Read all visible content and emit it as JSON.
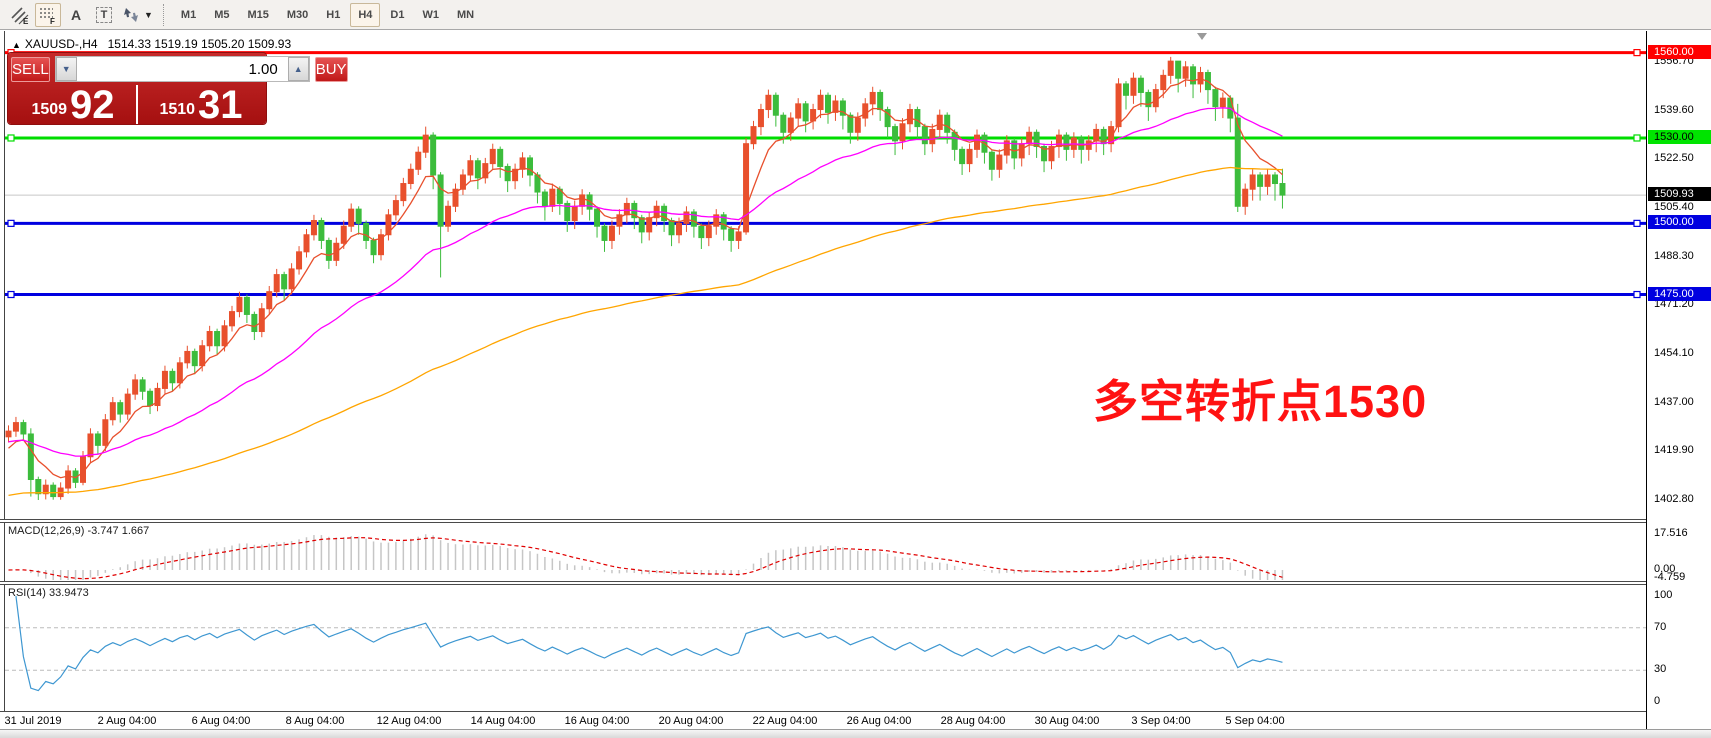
{
  "toolbar": {
    "tools": [
      {
        "name": "equidistant-channel-icon",
        "sub": "E"
      },
      {
        "name": "fibonacci-retracement-icon",
        "sub": "F",
        "active": true
      },
      {
        "name": "text-icon",
        "glyph": "A"
      },
      {
        "name": "text-label-icon",
        "glyph": "T"
      },
      {
        "name": "arrow-objects-icon",
        "caret": "▾"
      }
    ],
    "timeframes": [
      "M1",
      "M5",
      "M15",
      "M30",
      "H1",
      "H4",
      "D1",
      "W1",
      "MN"
    ],
    "active_timeframe": "H4"
  },
  "header": {
    "marker": "▲",
    "symbol_period": "XAUUSD-,H4",
    "ohlc": "1514.33 1519.19 1505.20 1509.93"
  },
  "trade_panel": {
    "sell_label": "SELL",
    "buy_label": "BUY",
    "volume": "1.00",
    "spin_down": "▼",
    "spin_up": "▲",
    "bid_small": "1509",
    "bid_big": "92",
    "ask_small": "1510",
    "ask_big": "31"
  },
  "annotation": {
    "text": "多空转折点1530",
    "color": "#FF1212"
  },
  "indicator_labels": {
    "macd": "MACD(12,26,9) -3.747 1.667",
    "rsi": "RSI(14) 33.9473"
  },
  "chart_data": {
    "type": "candlestick",
    "symbol": "XAUUSD",
    "period": "H4",
    "colors": {
      "up": "#E8502D",
      "down": "#3CBC3C",
      "ma_fast": "#E8502D",
      "ma_mid": "#FF00FF",
      "ma_slow": "#FFA500",
      "rsi": "#3E97D1",
      "macd_hist": "#C6C6C6",
      "macd_signal": "#E00000",
      "current_price_line": "#C8C8C8"
    },
    "first_open": 1425,
    "candles": [
      [
        1429,
        1423,
        1427
      ],
      [
        1432,
        1425,
        1430
      ],
      [
        1431,
        1424,
        1426
      ],
      [
        1428,
        1404,
        1410
      ],
      [
        1411,
        1402.8,
        1405
      ],
      [
        1410,
        1403,
        1408
      ],
      [
        1409,
        1402.9,
        1404
      ],
      [
        1409,
        1402.9,
        1407
      ],
      [
        1415,
        1405,
        1413
      ],
      [
        1414,
        1407,
        1409
      ],
      [
        1420,
        1408,
        1418
      ],
      [
        1428,
        1416,
        1426
      ],
      [
        1427,
        1419,
        1422
      ],
      [
        1433,
        1420,
        1431
      ],
      [
        1439,
        1429,
        1437
      ],
      [
        1438,
        1430,
        1433
      ],
      [
        1442,
        1431,
        1440
      ],
      [
        1447,
        1438,
        1445
      ],
      [
        1446,
        1438,
        1441
      ],
      [
        1442,
        1433,
        1436
      ],
      [
        1444,
        1434,
        1442
      ],
      [
        1450,
        1440,
        1448
      ],
      [
        1449,
        1441,
        1444
      ],
      [
        1453,
        1442,
        1451
      ],
      [
        1457,
        1449,
        1455
      ],
      [
        1456,
        1447,
        1450
      ],
      [
        1459,
        1448,
        1457
      ],
      [
        1464,
        1455,
        1462
      ],
      [
        1463,
        1454,
        1457
      ],
      [
        1466,
        1455,
        1464
      ],
      [
        1471,
        1462,
        1469
      ],
      [
        1476,
        1467,
        1474
      ],
      [
        1475,
        1465,
        1468
      ],
      [
        1469,
        1459,
        1462
      ],
      [
        1472,
        1460,
        1470
      ],
      [
        1478,
        1468,
        1476
      ],
      [
        1484,
        1474,
        1482
      ],
      [
        1483,
        1473,
        1477
      ],
      [
        1486,
        1475,
        1484
      ],
      [
        1492,
        1482,
        1490
      ],
      [
        1498,
        1488,
        1496
      ],
      [
        1503,
        1494,
        1501
      ],
      [
        1502,
        1491,
        1494
      ],
      [
        1495,
        1484,
        1487
      ],
      [
        1495,
        1485,
        1493
      ],
      [
        1501,
        1491,
        1499
      ],
      [
        1507,
        1497,
        1505
      ],
      [
        1506,
        1496,
        1500
      ],
      [
        1501,
        1491,
        1494
      ],
      [
        1495,
        1486,
        1489
      ],
      [
        1498,
        1487,
        1496
      ],
      [
        1505,
        1494,
        1503
      ],
      [
        1510,
        1501,
        1508
      ],
      [
        1516,
        1506,
        1514
      ],
      [
        1521,
        1512,
        1519
      ],
      [
        1527,
        1517,
        1525
      ],
      [
        1534,
        1523,
        1531
      ],
      [
        1532,
        1512,
        1517
      ],
      [
        1518,
        1481,
        1499
      ],
      [
        1508,
        1497,
        1506
      ],
      [
        1514,
        1504,
        1512
      ],
      [
        1519,
        1510,
        1517
      ],
      [
        1524,
        1515,
        1522
      ],
      [
        1523,
        1512,
        1516
      ],
      [
        1523,
        1514,
        1521
      ],
      [
        1528,
        1519,
        1526
      ],
      [
        1527,
        1516,
        1520
      ],
      [
        1521,
        1511,
        1515
      ],
      [
        1521,
        1512,
        1519
      ],
      [
        1525,
        1516,
        1523
      ],
      [
        1524,
        1513,
        1517
      ],
      [
        1518,
        1507,
        1511
      ],
      [
        1512,
        1501,
        1506
      ],
      [
        1514,
        1504,
        1512
      ],
      [
        1513,
        1503,
        1507
      ],
      [
        1508,
        1497,
        1501
      ],
      [
        1508,
        1498,
        1506
      ],
      [
        1512,
        1503,
        1510
      ],
      [
        1511,
        1501,
        1505
      ],
      [
        1506,
        1495,
        1499
      ],
      [
        1500,
        1490,
        1494
      ],
      [
        1501,
        1491,
        1499
      ],
      [
        1505,
        1496,
        1503
      ],
      [
        1509,
        1500,
        1507
      ],
      [
        1508,
        1498,
        1502
      ],
      [
        1503,
        1493,
        1497
      ],
      [
        1504,
        1494,
        1502
      ],
      [
        1508,
        1499,
        1506
      ],
      [
        1507,
        1497,
        1501
      ],
      [
        1502,
        1492,
        1496
      ],
      [
        1502,
        1493,
        1500
      ],
      [
        1506,
        1497,
        1504
      ],
      [
        1505,
        1495,
        1499
      ],
      [
        1500,
        1491,
        1495
      ],
      [
        1501,
        1492,
        1499
      ],
      [
        1505,
        1496,
        1503
      ],
      [
        1504,
        1494,
        1498
      ],
      [
        1499,
        1490,
        1494
      ],
      [
        1499,
        1491,
        1497
      ],
      [
        1530,
        1496,
        1528
      ],
      [
        1536,
        1526,
        1534
      ],
      [
        1542,
        1531,
        1540
      ],
      [
        1547,
        1537,
        1545
      ],
      [
        1546,
        1534,
        1538
      ],
      [
        1539,
        1528,
        1532
      ],
      [
        1539,
        1529,
        1537
      ],
      [
        1544,
        1534,
        1542
      ],
      [
        1543,
        1532,
        1536
      ],
      [
        1542,
        1533,
        1540
      ],
      [
        1547,
        1537,
        1545
      ],
      [
        1546,
        1535,
        1539
      ],
      [
        1545,
        1536,
        1543
      ],
      [
        1544,
        1533,
        1538
      ],
      [
        1539,
        1528,
        1532
      ],
      [
        1539,
        1529,
        1537
      ],
      [
        1544,
        1534,
        1542
      ],
      [
        1548,
        1538,
        1546
      ],
      [
        1547,
        1536,
        1540
      ],
      [
        1541,
        1530,
        1534
      ],
      [
        1535,
        1524,
        1529
      ],
      [
        1537,
        1526,
        1535
      ],
      [
        1542,
        1532,
        1540
      ],
      [
        1541,
        1530,
        1534
      ],
      [
        1535,
        1524,
        1528
      ],
      [
        1535,
        1525,
        1533
      ],
      [
        1540,
        1530,
        1538
      ],
      [
        1539,
        1528,
        1532
      ],
      [
        1533,
        1522,
        1526
      ],
      [
        1527,
        1517,
        1521
      ],
      [
        1528,
        1518,
        1526
      ],
      [
        1533,
        1523,
        1531
      ],
      [
        1532,
        1521,
        1525
      ],
      [
        1526,
        1515,
        1519
      ],
      [
        1526,
        1516,
        1524
      ],
      [
        1531,
        1521,
        1529
      ],
      [
        1530,
        1519,
        1523
      ],
      [
        1530,
        1520,
        1528
      ],
      [
        1534,
        1524,
        1532
      ],
      [
        1533,
        1523,
        1527
      ],
      [
        1528,
        1518,
        1522
      ],
      [
        1529,
        1519,
        1527
      ],
      [
        1533,
        1523,
        1531
      ],
      [
        1532,
        1522,
        1526
      ],
      [
        1532,
        1523,
        1530
      ],
      [
        1531,
        1521,
        1526
      ],
      [
        1531,
        1522,
        1529
      ],
      [
        1535,
        1525,
        1533
      ],
      [
        1534,
        1524,
        1528
      ],
      [
        1536,
        1525,
        1534
      ],
      [
        1551,
        1532,
        1549
      ],
      [
        1550,
        1540,
        1545
      ],
      [
        1553,
        1542,
        1551
      ],
      [
        1552,
        1541,
        1546
      ],
      [
        1547,
        1536,
        1541
      ],
      [
        1549,
        1539,
        1547
      ],
      [
        1554,
        1544,
        1552
      ],
      [
        1558.5,
        1549,
        1557
      ],
      [
        1556,
        1546,
        1551
      ],
      [
        1557,
        1548,
        1555
      ],
      [
        1556,
        1544,
        1549
      ],
      [
        1555,
        1546,
        1553
      ],
      [
        1554,
        1542,
        1547
      ],
      [
        1548,
        1536,
        1541
      ],
      [
        1546,
        1537,
        1544
      ],
      [
        1545,
        1532,
        1537
      ],
      [
        1542,
        1504,
        1506
      ],
      [
        1514,
        1503,
        1512
      ],
      [
        1519,
        1508,
        1517
      ],
      [
        1518,
        1508,
        1513
      ],
      [
        1519,
        1510,
        1517
      ],
      [
        1518,
        1508,
        1514
      ],
      [
        1519.19,
        1505.2,
        1509.93
      ]
    ],
    "moving_averages": [
      {
        "name": "ma-fast",
        "period": 7,
        "color": "#E8502D",
        "seed": 1419
      },
      {
        "name": "ma-mid",
        "period": 32,
        "color": "#FF00FF",
        "seed": 1423
      },
      {
        "name": "ma-slow",
        "period": 110,
        "color": "#FFA500",
        "seed": 1404
      }
    ],
    "hlines": [
      {
        "price": 1560.0,
        "color": "#FF0000",
        "width": 3,
        "handles": true,
        "label": "1560.00",
        "bg": "#FF0000",
        "fg": "#FFFFFF"
      },
      {
        "price": 1530.0,
        "color": "#00DD00",
        "width": 3,
        "handles": true,
        "label": "1530.00",
        "bg": "#00E400",
        "fg": "#000000"
      },
      {
        "price": 1509.93,
        "color": "#C8C8C8",
        "width": 1,
        "handles": false,
        "label": "1509.93",
        "bg": "#000000",
        "fg": "#FFFFFF"
      },
      {
        "price": 1500.0,
        "color": "#0000E0",
        "width": 3,
        "handles": true,
        "label": "1500.00",
        "bg": "#0000E0",
        "fg": "#FFFFFF"
      },
      {
        "price": 1475.0,
        "color": "#0000E0",
        "width": 3,
        "handles": true,
        "label": "1475.00",
        "bg": "#0000E0",
        "fg": "#FFFFFF"
      }
    ],
    "y_axis_ticks": [
      "1556.70",
      "1539.60",
      "1522.50",
      "1505.40",
      "1488.30",
      "1471.20",
      "1454.10",
      "1437.00",
      "1419.90",
      "1402.80"
    ],
    "x_axis": {
      "labels": [
        "31 Jul 2019",
        "2 Aug 04:00",
        "6 Aug 04:00",
        "8 Aug 04:00",
        "12 Aug 04:00",
        "14 Aug 04:00",
        "16 Aug 04:00",
        "20 Aug 04:00",
        "22 Aug 04:00",
        "26 Aug 04:00",
        "28 Aug 04:00",
        "30 Aug 04:00",
        "3 Sep 04:00",
        "5 Sep 04:00"
      ],
      "positions": [
        33,
        127,
        221,
        315,
        409,
        503,
        597,
        691,
        785,
        879,
        973,
        1067,
        1161,
        1255
      ]
    },
    "macd": {
      "fast": 12,
      "slow": 26,
      "signal": 9,
      "axis_labels": [
        "17.516",
        "0.00",
        "-4.759"
      ],
      "current": "-3.747 1.667"
    },
    "rsi": {
      "period": 14,
      "levels": [
        100,
        70,
        30,
        0
      ],
      "current": "33.9473"
    }
  }
}
